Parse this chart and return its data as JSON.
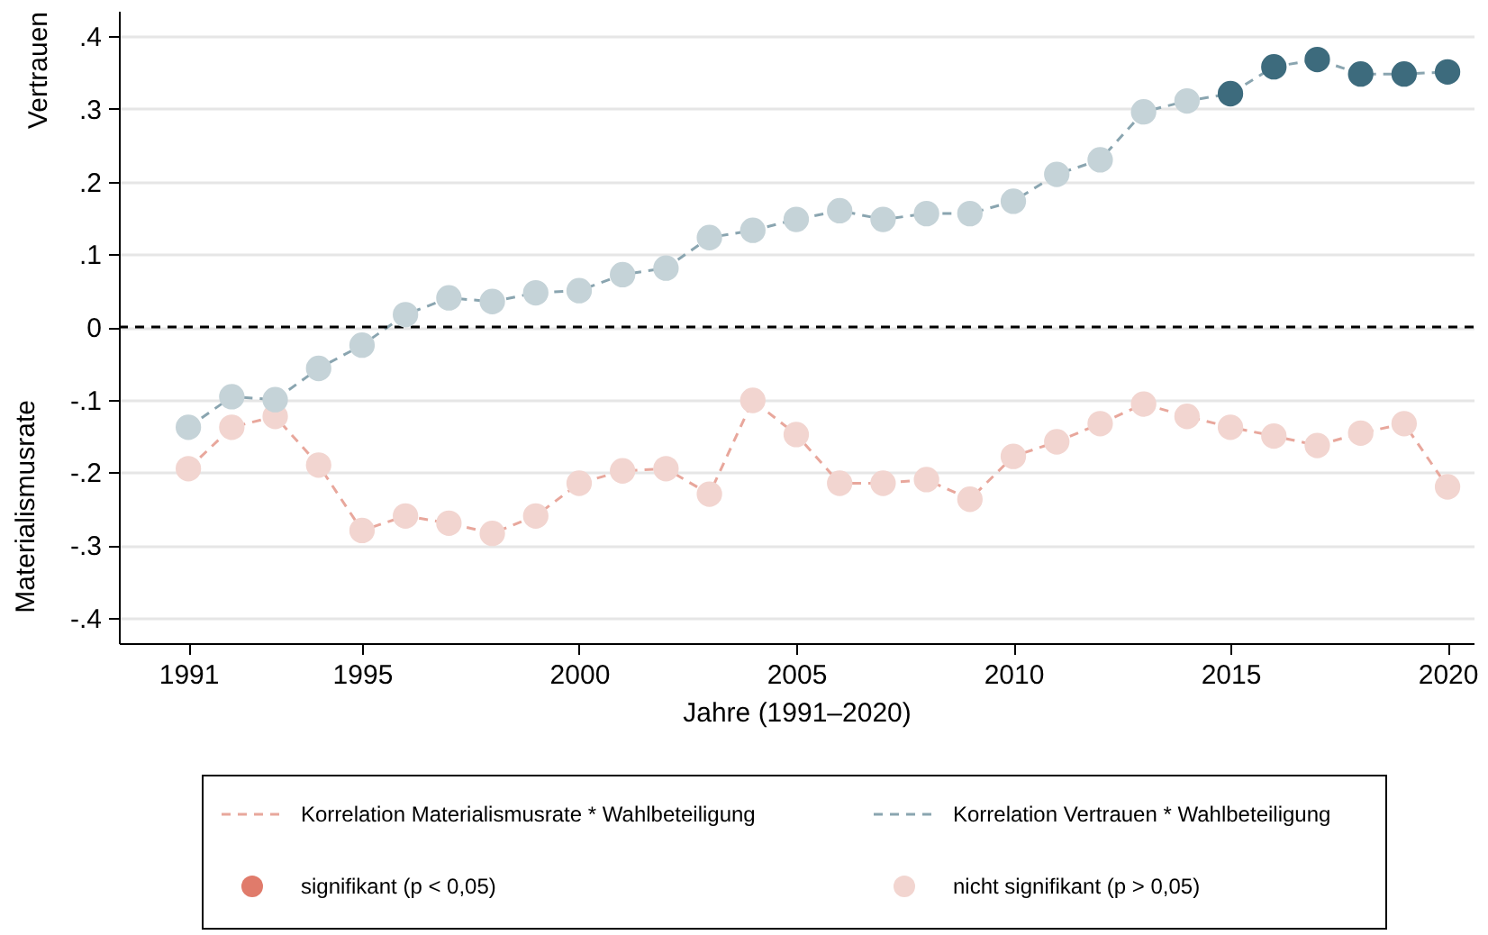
{
  "chart_data": {
    "type": "line",
    "xlabel": "Jahre (1991–2020)",
    "ylabel": "Vertrauen",
    "x": [
      1991,
      1992,
      1993,
      1994,
      1995,
      1996,
      1997,
      1998,
      1999,
      2000,
      2001,
      2002,
      2003,
      2004,
      2005,
      2006,
      2007,
      2008,
      2009,
      2010,
      2011,
      2012,
      2013,
      2014,
      2015,
      2016,
      2017,
      2018,
      2019,
      2020
    ],
    "series": [
      {
        "name": "Korrelation Materialismusrate * Wahlbeteiligung",
        "color": "#e8a79c",
        "colors": [
          "#f2d5d0",
          "#f2d5d0",
          "#f2d5d0",
          "#f2d5d0",
          "#f2d5d0",
          "#f2d5d0",
          "#f2d5d0",
          "#f2d5d0",
          "#f2d5d0",
          "#f2d5d0",
          "#f2d5d0",
          "#f2d5d0",
          "#f2d5d0",
          "#f2d5d0",
          "#f2d5d0",
          "#f2d5d0",
          "#f2d5d0",
          "#f2d5d0",
          "#f2d5d0",
          "#f2d5d0",
          "#f2d5d0",
          "#f2d5d0",
          "#f2d5d0",
          "#f2d5d0",
          "#f2d5d0",
          "#f2d5d0",
          "#f2d5d0",
          "#f2d5d0",
          "#f2d5d0",
          "#f2d5d0"
        ],
        "values": [
          -0.195,
          -0.138,
          -0.123,
          -0.19,
          -0.28,
          -0.26,
          -0.27,
          -0.284,
          -0.26,
          -0.215,
          -0.198,
          -0.195,
          -0.23,
          -0.101,
          -0.148,
          -0.215,
          -0.215,
          -0.21,
          -0.237,
          -0.178,
          -0.158,
          -0.133,
          -0.106,
          -0.123,
          -0.138,
          -0.15,
          -0.163,
          -0.146,
          -0.133,
          -0.22
        ]
      },
      {
        "name": "Korrelation Vertrauen * Wahlbeteiligung",
        "color": "#8aa5b0",
        "colors": [
          "#c5d3d8",
          "#c5d3d8",
          "#c5d3d8",
          "#c5d3d8",
          "#c5d3d8",
          "#c5d3d8",
          "#c5d3d8",
          "#c5d3d8",
          "#c5d3d8",
          "#c5d3d8",
          "#c5d3d8",
          "#c5d3d8",
          "#c5d3d8",
          "#c5d3d8",
          "#c5d3d8",
          "#c5d3d8",
          "#c5d3d8",
          "#c5d3d8",
          "#c5d3d8",
          "#c5d3d8",
          "#c5d3d8",
          "#c5d3d8",
          "#c5d3d8",
          "#c5d3d8",
          "#3d6b7d",
          "#3d6b7d",
          "#3d6b7d",
          "#3d6b7d",
          "#3d6b7d",
          "#3d6b7d"
        ],
        "values": [
          -0.138,
          -0.096,
          -0.1,
          -0.057,
          -0.025,
          0.017,
          0.04,
          0.035,
          0.047,
          0.05,
          0.072,
          0.081,
          0.123,
          0.133,
          0.148,
          0.16,
          0.148,
          0.156,
          0.156,
          0.173,
          0.21,
          0.23,
          0.296,
          0.311,
          0.321,
          0.358,
          0.368,
          0.348,
          0.348,
          0.351
        ]
      }
    ],
    "xlim": [
      1989.4,
      2020.6
    ],
    "xticks": [
      1991,
      1995,
      2000,
      2005,
      2010,
      2015,
      2020
    ],
    "ylim": [
      -0.435,
      0.435
    ],
    "yticks": [
      {
        "value": 0.4,
        "label": ".4"
      },
      {
        "value": 0.3,
        "label": ".3"
      },
      {
        "value": 0.2,
        "label": ".2"
      },
      {
        "value": 0.1,
        "label": ".1"
      },
      {
        "value": 0,
        "label": "0"
      },
      {
        "value": -0.1,
        "label": "-.1"
      },
      {
        "value": -0.2,
        "label": "-.2"
      },
      {
        "value": -0.3,
        "label": "-.3"
      },
      {
        "value": -0.4,
        "label": "-.4"
      }
    ],
    "ref_lines": [
      {
        "axis": "y",
        "value": 0,
        "color": "#000000",
        "line_style": "dashed"
      }
    ],
    "grid": "y",
    "marker": "circle",
    "line_style": "dashed",
    "legend": "bottom",
    "annotations": [
      "Materialismusrate",
      "signifikant (p < 0,05)",
      "nicht signifikant (p > 0,05)"
    ]
  }
}
